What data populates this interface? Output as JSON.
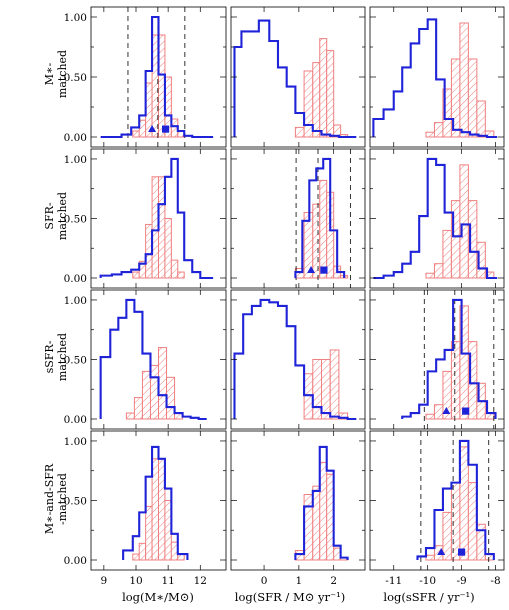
{
  "figure": {
    "row_labels": [
      [
        "M∗-",
        "matched"
      ],
      [
        "SFR-",
        "matched"
      ],
      [
        "sSFR-",
        "matched"
      ],
      [
        "M∗-and-SFR",
        "-matched"
      ]
    ],
    "x_labels": [
      "log(M∗/M⊙)",
      "log(SFR / M⊙ yr⁻¹)",
      "log(sSFR / yr⁻¹)"
    ],
    "y_ticks": [
      "0.00",
      "0.50",
      "1.00"
    ],
    "colors": {
      "blue_outline": "#1f23d8",
      "red_hatch": "#ef7f7f"
    }
  },
  "chart_data": {
    "type": "histogram",
    "columns": [
      {
        "xlim": [
          8.6,
          12.8
        ],
        "ticks": [
          9,
          10,
          11,
          12
        ],
        "tick_labels": [
          "9",
          "10",
          "11",
          "12"
        ]
      },
      {
        "xlim": [
          -0.95,
          2.9
        ],
        "ticks": [
          0,
          1,
          2
        ],
        "tick_labels": [
          "0",
          "1",
          "2"
        ]
      },
      {
        "xlim": [
          -11.7,
          -7.75
        ],
        "ticks": [
          -11,
          -10,
          -9,
          -8
        ],
        "tick_labels": [
          "-11",
          "-10",
          "-9",
          "-8"
        ]
      }
    ],
    "ylim": [
      0,
      1.05
    ],
    "panels": [
      {
        "row": 0,
        "col": 0,
        "blue": {
          "edges": [
            8.9,
            9.25,
            9.55,
            9.85,
            10.1,
            10.3,
            10.5,
            10.7,
            10.9,
            11.1,
            11.3,
            11.5,
            11.75,
            12.0,
            12.4
          ],
          "values": [
            0,
            0,
            0.02,
            0.08,
            0.18,
            0.55,
            1.0,
            0.52,
            0.18,
            0.09,
            0.05,
            0.01,
            0.0,
            0.0
          ]
        },
        "red": {
          "edges": [
            9.9,
            10.1,
            10.3,
            10.5,
            10.7,
            10.9,
            11.1,
            11.3,
            11.5
          ],
          "values": [
            0.05,
            0.14,
            0.45,
            0.85,
            0.85,
            0.5,
            0.15,
            0.05
          ]
        },
        "vlines": [
          9.75,
          10.68,
          11.52
        ],
        "markers": {
          "triangle": 10.5,
          "square": 10.92
        }
      },
      {
        "row": 0,
        "col": 1,
        "blue": {
          "edges": [
            -0.85,
            -0.65,
            -0.4,
            -0.15,
            0.15,
            0.4,
            0.65,
            0.9,
            1.15,
            1.4,
            1.65,
            1.9,
            2.15,
            2.4,
            2.65
          ],
          "values": [
            0.75,
            0.88,
            0.88,
            0.97,
            0.8,
            0.58,
            0.42,
            0.2,
            0.1,
            0.05,
            0.02,
            0.01,
            0.0,
            0.0
          ]
        },
        "red": {
          "edges": [
            0.9,
            1.15,
            1.4,
            1.6,
            1.8,
            2.0,
            2.2,
            2.4
          ],
          "values": [
            0.08,
            0.55,
            0.62,
            0.82,
            0.72,
            0.1,
            0.02
          ]
        },
        "vlines": [],
        "markers": null
      },
      {
        "row": 0,
        "col": 2,
        "blue": {
          "edges": [
            -11.6,
            -11.3,
            -11.0,
            -10.75,
            -10.5,
            -10.25,
            -10.0,
            -9.75,
            -9.5,
            -9.25,
            -9.0,
            -8.75,
            -8.5,
            -8.25,
            -7.95
          ],
          "values": [
            0.15,
            0.23,
            0.38,
            0.58,
            0.78,
            0.9,
            0.98,
            0.48,
            0.15,
            0.06,
            0.04,
            0.02,
            0.01,
            0.0
          ]
        },
        "red": {
          "edges": [
            -10.05,
            -9.8,
            -9.55,
            -9.3,
            -9.05,
            -8.8,
            -8.55,
            -8.3,
            -8.05
          ],
          "values": [
            0.04,
            0.12,
            0.4,
            0.65,
            0.95,
            0.65,
            0.3,
            0.05
          ]
        },
        "vlines": [],
        "markers": null
      },
      {
        "row": 1,
        "col": 0,
        "blue": {
          "edges": [
            8.9,
            9.25,
            9.55,
            9.85,
            10.1,
            10.3,
            10.5,
            10.7,
            10.9,
            11.1,
            11.3,
            11.5,
            11.75,
            12.0,
            12.4
          ],
          "values": [
            0.02,
            0.03,
            0.05,
            0.07,
            0.12,
            0.2,
            0.4,
            0.62,
            0.85,
            1.0,
            0.55,
            0.15,
            0.05,
            0.0
          ]
        },
        "red": {
          "edges": [
            9.9,
            10.1,
            10.3,
            10.5,
            10.7,
            10.9,
            11.1,
            11.3,
            11.5
          ],
          "values": [
            0.05,
            0.14,
            0.45,
            0.85,
            0.85,
            0.5,
            0.15,
            0.05
          ]
        },
        "vlines": [],
        "markers": null
      },
      {
        "row": 1,
        "col": 1,
        "blue": {
          "edges": [
            0.9,
            1.1,
            1.3,
            1.5,
            1.7,
            1.9,
            2.1,
            2.3
          ],
          "values": [
            0.05,
            0.48,
            0.82,
            0.92,
            1.0,
            0.4,
            0.05
          ]
        },
        "red": {
          "edges": [
            0.9,
            1.15,
            1.4,
            1.6,
            1.8,
            2.0,
            2.2,
            2.4
          ],
          "values": [
            0.08,
            0.55,
            0.62,
            0.82,
            0.72,
            0.1,
            0.02
          ]
        },
        "vlines": [
          0.92,
          1.55,
          2.48
        ],
        "markers": {
          "triangle": 1.35,
          "square": 1.72
        }
      },
      {
        "row": 1,
        "col": 2,
        "blue": {
          "edges": [
            -11.6,
            -11.3,
            -11.0,
            -10.75,
            -10.5,
            -10.25,
            -10.0,
            -9.75,
            -9.5,
            -9.25,
            -9.0,
            -8.75,
            -8.5,
            -8.25,
            -7.95
          ],
          "values": [
            0.0,
            0.02,
            0.05,
            0.12,
            0.22,
            0.52,
            1.0,
            0.95,
            0.55,
            0.35,
            0.45,
            0.22,
            0.08,
            0.0
          ]
        },
        "red": {
          "edges": [
            -10.05,
            -9.8,
            -9.55,
            -9.3,
            -9.05,
            -8.8,
            -8.55,
            -8.3,
            -8.05
          ],
          "values": [
            0.04,
            0.12,
            0.4,
            0.65,
            0.95,
            0.65,
            0.3,
            0.05
          ]
        },
        "vlines": [],
        "markers": null
      },
      {
        "row": 2,
        "col": 0,
        "blue": {
          "edges": [
            8.9,
            9.2,
            9.45,
            9.7,
            9.95,
            10.2,
            10.45,
            10.7,
            10.95,
            11.2,
            11.45,
            11.7,
            11.95,
            12.2
          ],
          "values": [
            0.52,
            0.75,
            0.85,
            1.0,
            0.9,
            0.55,
            0.35,
            0.2,
            0.1,
            0.05,
            0.02,
            0.01,
            0.0
          ]
        },
        "red": {
          "edges": [
            9.7,
            9.95,
            10.2,
            10.45,
            10.7,
            10.95,
            11.2,
            11.45
          ],
          "values": [
            0.05,
            0.18,
            0.4,
            0.45,
            0.6,
            0.35,
            0.05
          ]
        },
        "vlines": [],
        "markers": null
      },
      {
        "row": 2,
        "col": 1,
        "blue": {
          "edges": [
            -0.85,
            -0.6,
            -0.35,
            -0.1,
            0.15,
            0.4,
            0.65,
            0.9,
            1.15,
            1.4,
            1.65,
            1.9,
            2.15,
            2.4,
            2.65
          ],
          "values": [
            0.55,
            0.88,
            0.95,
            1.0,
            0.98,
            0.95,
            0.78,
            0.45,
            0.2,
            0.1,
            0.05,
            0.02,
            0.01,
            0.0
          ]
        },
        "red": {
          "edges": [
            1.15,
            1.4,
            1.65,
            1.9,
            2.15,
            2.4
          ],
          "values": [
            0.38,
            0.5,
            0.5,
            0.58,
            0.05
          ]
        },
        "vlines": [],
        "markers": null
      },
      {
        "row": 2,
        "col": 2,
        "blue": {
          "edges": [
            -10.75,
            -10.5,
            -10.25,
            -10.0,
            -9.75,
            -9.5,
            -9.25,
            -9.0,
            -8.75,
            -8.5,
            -8.25,
            -8.0
          ],
          "values": [
            0.02,
            0.05,
            0.12,
            0.4,
            0.5,
            0.58,
            1.0,
            0.55,
            0.3,
            0.15,
            0.05
          ]
        },
        "red": {
          "edges": [
            -10.05,
            -9.8,
            -9.55,
            -9.3,
            -9.05,
            -8.8,
            -8.55,
            -8.3,
            -8.05
          ],
          "values": [
            0.04,
            0.12,
            0.4,
            0.65,
            0.95,
            0.65,
            0.3,
            0.05
          ]
        },
        "vlines": [
          -10.1,
          -9.2,
          -8.05
        ],
        "markers": {
          "triangle": -9.45,
          "square": -8.88
        }
      },
      {
        "row": 3,
        "col": 0,
        "blue": {
          "edges": [
            9.6,
            9.9,
            10.1,
            10.3,
            10.5,
            10.7,
            10.9,
            11.1,
            11.3,
            11.6
          ],
          "values": [
            0.08,
            0.2,
            0.4,
            0.7,
            0.95,
            0.85,
            0.6,
            0.22,
            0.05
          ]
        },
        "red": {
          "edges": [
            9.9,
            10.1,
            10.3,
            10.5,
            10.7,
            10.9,
            11.1,
            11.3,
            11.5
          ],
          "values": [
            0.05,
            0.14,
            0.45,
            0.85,
            0.85,
            0.5,
            0.15,
            0.05
          ]
        },
        "vlines": [],
        "markers": null
      },
      {
        "row": 3,
        "col": 1,
        "blue": {
          "edges": [
            0.9,
            1.15,
            1.4,
            1.6,
            1.8,
            2.0,
            2.2,
            2.4
          ],
          "values": [
            0.05,
            0.45,
            0.58,
            0.95,
            0.75,
            0.12,
            0.02
          ]
        },
        "red": {
          "edges": [
            0.9,
            1.15,
            1.4,
            1.6,
            1.8,
            2.0,
            2.2,
            2.4
          ],
          "values": [
            0.08,
            0.55,
            0.62,
            0.82,
            0.72,
            0.1,
            0.02
          ]
        },
        "vlines": [],
        "markers": null
      },
      {
        "row": 3,
        "col": 2,
        "blue": {
          "edges": [
            -10.3,
            -10.05,
            -9.8,
            -9.55,
            -9.3,
            -9.05,
            -8.8,
            -8.55,
            -8.3,
            -8.05
          ],
          "values": [
            0.03,
            0.1,
            0.42,
            0.6,
            0.65,
            1.0,
            0.8,
            0.25,
            0.05
          ]
        },
        "red": {
          "edges": [
            -10.05,
            -9.8,
            -9.55,
            -9.3,
            -9.05,
            -8.8,
            -8.55,
            -8.3,
            -8.05
          ],
          "values": [
            0.04,
            0.12,
            0.4,
            0.65,
            0.95,
            0.65,
            0.3,
            0.05
          ]
        },
        "vlines": [
          -10.2,
          -9.25,
          -8.2
        ],
        "markers": {
          "triangle": -9.6,
          "square": -9.0
        }
      }
    ]
  }
}
